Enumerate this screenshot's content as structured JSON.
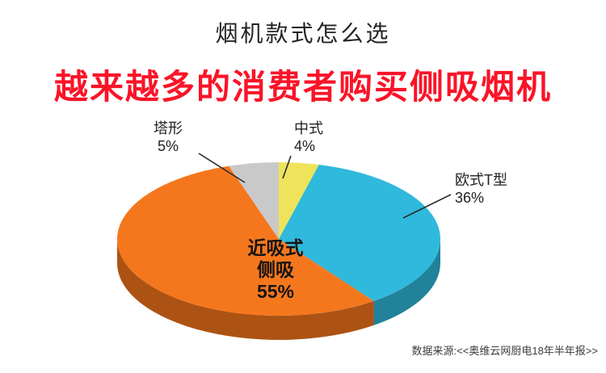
{
  "page": {
    "title": "烟机款式怎么选",
    "headline": "越来越多的消费者购买侧吸烟机",
    "source": "数据来源:<<奥维云网厨电18年半年报>>"
  },
  "colors": {
    "headline": "#fa1428",
    "leader_line": "#2b2b2b",
    "label_text": "#222222"
  },
  "chart_data": {
    "type": "pie",
    "style": "3d",
    "title": "烟机款式怎么选",
    "unit": "%",
    "start_angle_deg": -90,
    "direction": "clockwise",
    "legend": "none",
    "slices": [
      {
        "label": "中式",
        "value": 4,
        "pct": "4%",
        "color": "#efe35c"
      },
      {
        "label": "欧式T型",
        "value": 36,
        "pct": "36%",
        "color": "#2fb9dc"
      },
      {
        "label": "近吸式侧吸",
        "label_lines": [
          "近吸式",
          "侧吸"
        ],
        "value": 55,
        "pct": "55%",
        "color": "#f5771d"
      },
      {
        "label": "塔形",
        "value": 5,
        "pct": "5%",
        "color": "#c9c9c9"
      }
    ]
  }
}
